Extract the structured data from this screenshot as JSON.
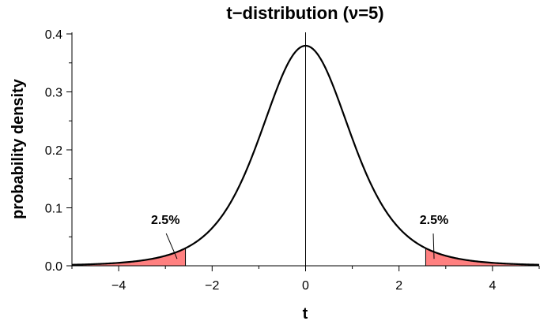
{
  "chart_data": {
    "type": "line",
    "title": "t−distribution (ν=5)",
    "xlabel": "t",
    "ylabel": "probability density",
    "xlim": [
      -5,
      5
    ],
    "ylim": [
      0,
      0.4
    ],
    "x_ticks": [
      -4,
      -2,
      0,
      2,
      4
    ],
    "x_tick_labels": [
      "−4",
      "−2",
      "0",
      "2",
      "4"
    ],
    "y_ticks": [
      0,
      0.1,
      0.2,
      0.3,
      0.4
    ],
    "y_tick_labels": [
      "0.0",
      "0.1",
      "0.2",
      "0.3",
      "0.4"
    ],
    "x_minor_step": 1,
    "y_minor_step": 0.05,
    "grid": false,
    "series": [
      {
        "distribution": "student-t",
        "degrees_of_freedom": 5,
        "x_range": [
          -5,
          5
        ],
        "color": "#000000"
      }
    ],
    "shaded_regions": [
      {
        "x_from": -5,
        "x_to": -2.571,
        "color": "#ff8080",
        "label": "2.5%"
      },
      {
        "x_from": 2.571,
        "x_to": 5,
        "color": "#ff8080",
        "label": "2.5%"
      }
    ],
    "annotations": [
      {
        "text": "2.5%",
        "x": -3.0,
        "y": 0.072,
        "pointer_to": [
          -2.75,
          0.012
        ]
      },
      {
        "text": "2.5%",
        "x": 2.75,
        "y": 0.072,
        "pointer_to": [
          2.75,
          0.012
        ]
      }
    ]
  }
}
